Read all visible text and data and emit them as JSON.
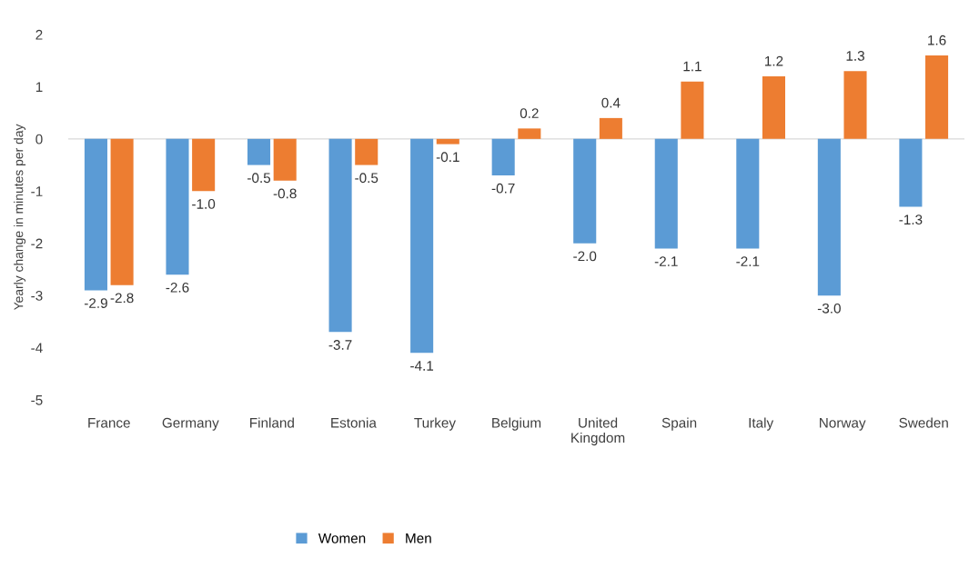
{
  "chart_data": {
    "type": "bar",
    "ylabel": "Yearly change in minutes per day",
    "categories": [
      "France",
      "Germany",
      "Finland",
      "Estonia",
      "Turkey",
      "Belgium",
      "United\nKingdom",
      "Spain",
      "Italy",
      "Norway",
      "Sweden"
    ],
    "series": [
      {
        "name": "Women",
        "color": "#5b9bd5",
        "values": [
          -2.9,
          -2.6,
          -0.5,
          -3.7,
          -4.1,
          -0.7,
          -2.0,
          -2.1,
          -2.1,
          -3.0,
          -1.3
        ],
        "value_labels": [
          "-2.9",
          "-2.6",
          "-0.5",
          "-3.7",
          "-4.1",
          "-0.7",
          "-2.0",
          "-2.1",
          "-2.1",
          "-3.0",
          "-1.3"
        ]
      },
      {
        "name": "Men",
        "color": "#ed7d31",
        "values": [
          -2.8,
          -1.0,
          -0.8,
          -0.5,
          -0.1,
          0.2,
          0.4,
          1.1,
          1.2,
          1.3,
          1.6
        ],
        "value_labels": [
          "-2.8",
          "-1.0",
          "-0.8",
          "-0.5",
          "-0.1",
          "0.2",
          "0.4",
          "1.1",
          "1.2",
          "1.3",
          "1.6"
        ]
      }
    ],
    "ylim": [
      -5,
      2
    ],
    "yticks": [
      -5,
      -4,
      -3,
      -2,
      -1,
      0,
      1,
      2
    ],
    "ref_lines": [
      {
        "axis": "y",
        "value": 0,
        "color": "#d9d9d9"
      }
    ],
    "legend": "bottom"
  }
}
